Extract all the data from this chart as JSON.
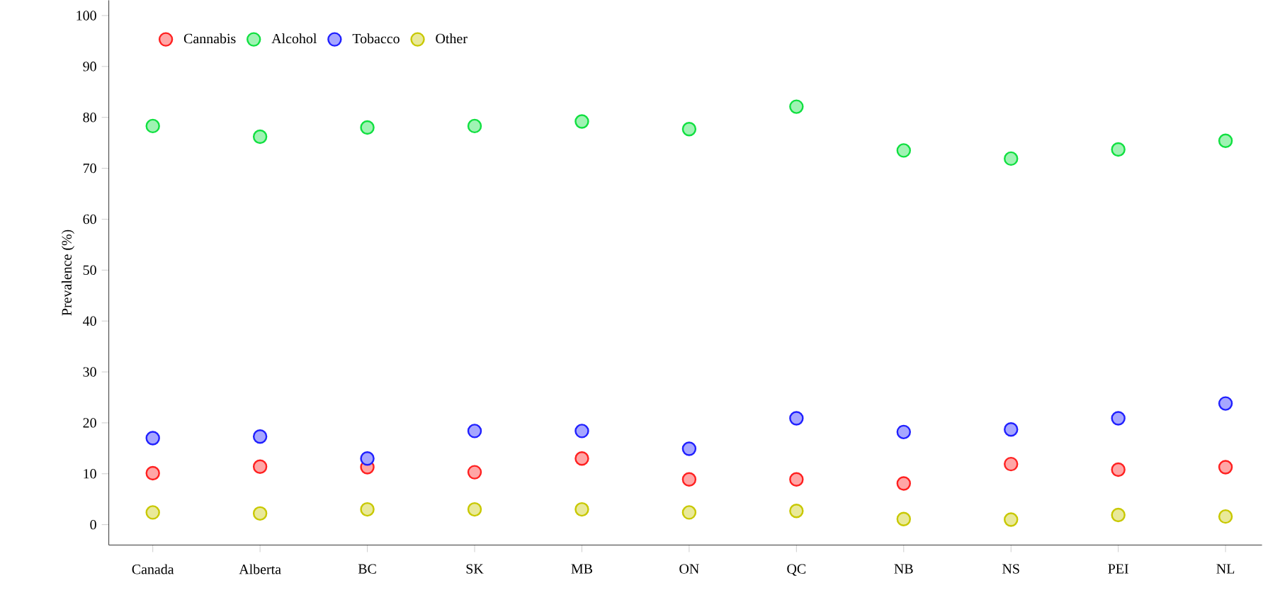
{
  "chart_data": {
    "type": "scatter",
    "ylabel": "Prevalence (%)",
    "categories": [
      "Canada",
      "Alberta",
      "BC",
      "SK",
      "MB",
      "ON",
      "QC",
      "NB",
      "NS",
      "PEI",
      "NL"
    ],
    "series": [
      {
        "name": "Cannabis",
        "color": "#ff2020",
        "values": [
          10.1,
          11.4,
          11.3,
          10.3,
          13.0,
          8.9,
          8.9,
          8.1,
          11.9,
          10.8,
          11.3
        ]
      },
      {
        "name": "Alcohol",
        "color": "#10e040",
        "values": [
          78.3,
          76.2,
          78.0,
          78.3,
          79.2,
          77.7,
          82.1,
          73.5,
          71.9,
          73.7,
          75.4
        ]
      },
      {
        "name": "Tobacco",
        "color": "#2020ff",
        "values": [
          17.0,
          17.3,
          13.0,
          18.4,
          18.4,
          14.9,
          20.9,
          18.2,
          18.7,
          20.9,
          23.8
        ]
      },
      {
        "name": "Other",
        "color": "#c8c800",
        "values": [
          2.4,
          2.2,
          3.0,
          3.0,
          3.0,
          2.4,
          2.7,
          1.1,
          1.0,
          1.9,
          1.6
        ]
      }
    ],
    "ylim": [
      -4,
      103
    ],
    "yticks": [
      0,
      10,
      20,
      30,
      40,
      50,
      60,
      70,
      80,
      90,
      100
    ],
    "marker": "circle",
    "legend": "top left",
    "grid": false
  }
}
